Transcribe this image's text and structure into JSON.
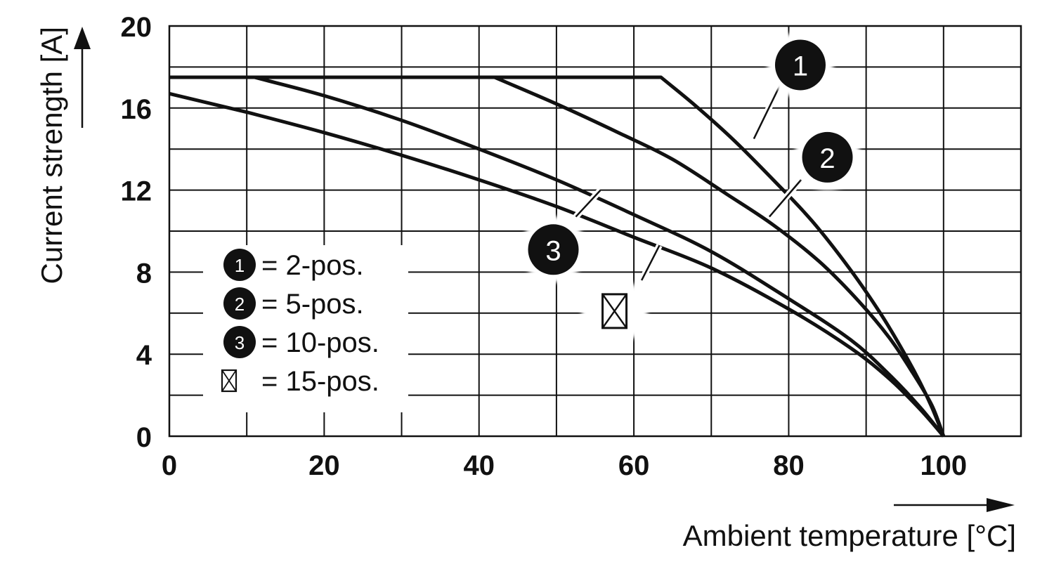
{
  "chart_data": {
    "type": "line",
    "xlabel": "Ambient temperature [°C]",
    "ylabel": "Current strength [A]",
    "xlim": [
      0,
      110
    ],
    "ylim": [
      0,
      20
    ],
    "x_ticks": [
      0,
      20,
      40,
      60,
      80,
      100
    ],
    "y_ticks": [
      0,
      4,
      8,
      12,
      16,
      20
    ],
    "grid": true,
    "x_grid_step": 10,
    "y_grid_step": 2,
    "legend_position": "left",
    "legend": [
      {
        "marker": "1",
        "marker_type": "filled-circle",
        "text": "= 2-pos."
      },
      {
        "marker": "2",
        "marker_type": "filled-circle",
        "text": "= 5-pos."
      },
      {
        "marker": "3",
        "marker_type": "filled-circle",
        "text": "= 10-pos."
      },
      {
        "marker": "",
        "marker_type": "crossed-box",
        "text": "= 15-pos."
      }
    ],
    "series": [
      {
        "marker": "1",
        "x": [
          0,
          63.5,
          68,
          73,
          78,
          83,
          88,
          92,
          95,
          97,
          98.5,
          100
        ],
        "y": [
          17.5,
          17.5,
          16.1,
          14.4,
          12.5,
          10.5,
          8.1,
          5.9,
          4.0,
          2.6,
          1.4,
          0
        ]
      },
      {
        "marker": "2",
        "x": [
          0,
          42,
          50,
          58,
          65,
          72,
          78,
          84,
          89,
          93,
          96,
          98.5,
          100
        ],
        "y": [
          17.5,
          17.5,
          16.2,
          14.8,
          13.5,
          11.8,
          10.3,
          8.5,
          6.6,
          4.8,
          3.1,
          1.5,
          0
        ]
      },
      {
        "marker": "3",
        "x": [
          0,
          11,
          20,
          30,
          40,
          50,
          60,
          70,
          80,
          88,
          93,
          97,
          100
        ],
        "y": [
          17.5,
          17.5,
          16.6,
          15.4,
          14.0,
          12.5,
          10.8,
          9.0,
          6.7,
          4.7,
          3.0,
          1.4,
          0
        ]
      },
      {
        "marker": "15-pos",
        "x": [
          0,
          10,
          20,
          30,
          40,
          50,
          60,
          70,
          80,
          88,
          93,
          97,
          100
        ],
        "y": [
          16.7,
          15.8,
          14.8,
          13.7,
          12.5,
          11.2,
          9.7,
          8.2,
          6.2,
          4.3,
          2.8,
          1.3,
          0
        ]
      }
    ],
    "callouts": [
      {
        "marker": "1",
        "marker_type": "filled-circle",
        "line_from": [
          75.5,
          14.5
        ],
        "line_to": [
          79.5,
          17.6
        ],
        "label_at": [
          81.5,
          18.1
        ]
      },
      {
        "marker": "2",
        "marker_type": "filled-circle",
        "line_from": [
          77.5,
          10.7
        ],
        "line_to": [
          81.6,
          12.5
        ],
        "label_at": [
          85.0,
          13.6
        ]
      },
      {
        "marker": "3",
        "marker_type": "filled-circle",
        "line_from": [
          55.7,
          12.0
        ],
        "line_to": [
          52.5,
          10.7
        ],
        "label_at": [
          49.6,
          9.1
        ]
      },
      {
        "marker": "",
        "marker_type": "crossed-box",
        "line_from": [
          63.3,
          9.3
        ],
        "line_to": [
          61.0,
          7.6
        ],
        "label_at": [
          57.5,
          6.1
        ]
      }
    ]
  }
}
